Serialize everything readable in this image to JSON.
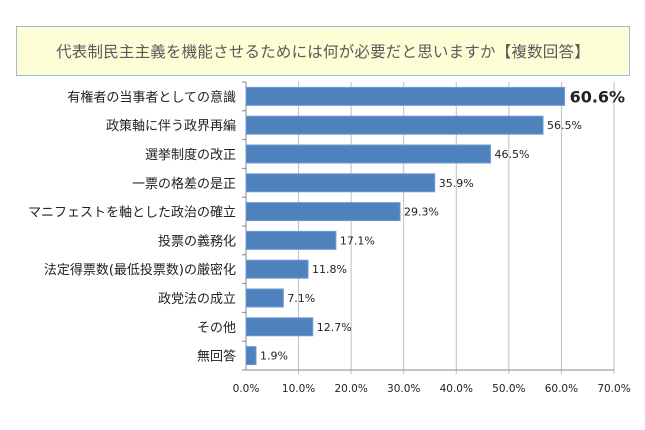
{
  "chart_data": {
    "type": "bar",
    "orientation": "horizontal",
    "title": "代表制民主主義を機能させるためには何が必要だと思いますか【複数回答】",
    "categories": [
      "有権者の当事者としての意識",
      "政策軸に伴う政界再編",
      "選挙制度の改正",
      "一票の格差の是正",
      "マニフェストを軸とした政治の確立",
      "投票の義務化",
      "法定得票数(最低投票数)の厳密化",
      "政党法の成立",
      "その他",
      "無回答"
    ],
    "values": [
      60.6,
      56.5,
      46.5,
      35.9,
      29.3,
      17.1,
      11.8,
      7.1,
      12.7,
      1.9
    ],
    "value_labels": [
      "60.6%",
      "56.5%",
      "46.5%",
      "35.9%",
      "29.3%",
      "17.1%",
      "11.8%",
      "7.1%",
      "12.7%",
      "1.9%"
    ],
    "xlim": [
      0,
      70
    ],
    "x_ticks": [
      0,
      10,
      20,
      30,
      40,
      50,
      60,
      70
    ],
    "x_tick_labels": [
      "0.0%",
      "10.0%",
      "20.0%",
      "30.0%",
      "40.0%",
      "50.0%",
      "60.0%",
      "70.0%"
    ],
    "xlabel": "",
    "ylabel": "",
    "grid": "vertical",
    "legend": "none",
    "colors": {
      "bar": "#4f81bd",
      "bar_border": "#6f9bd0",
      "grid": "#bfbfbf",
      "title_bg": "#fdfdd6",
      "title_border": "#9db9e0"
    }
  }
}
